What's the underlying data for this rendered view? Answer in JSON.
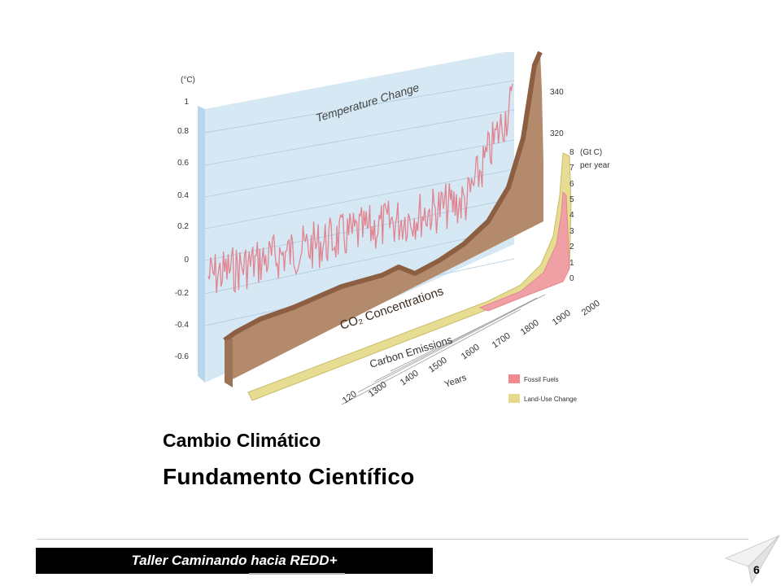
{
  "slide": {
    "subtitle": "Cambio Climático",
    "title": "Fundamento Científico",
    "footer": "Taller Caminando hacia REDD+",
    "page_number": "6"
  },
  "figure": {
    "left_axis_unit": "(°C)",
    "left_ticks": [
      "1",
      "0.8",
      "0.6",
      "0.4",
      "0.2",
      "0",
      "-0.2",
      "-0.4",
      "-0.6"
    ],
    "temperature_label": "Temperature Change",
    "co2_label": "CO₂ Concentrations",
    "co2_ticks": [
      "340",
      "320"
    ],
    "emissions_label": "Carbon Emissions",
    "emissions_unit_line1": "(Gt C)",
    "emissions_unit_line2": "per year",
    "emissions_ticks": [
      "8",
      "7",
      "6",
      "5",
      "4",
      "3",
      "2",
      "1",
      "0"
    ],
    "year_ticks": [
      "120",
      "1300",
      "1400",
      "1500",
      "1600",
      "1700",
      "1800",
      "1900",
      "2000"
    ],
    "years_label": "Years",
    "legend": [
      {
        "label": "Fossil Fuels",
        "color": "#f08a8f"
      },
      {
        "label": "Land-Use Change",
        "color": "#e5d98a"
      }
    ]
  },
  "colors": {
    "temperature_panel": "#d6e8f4",
    "temperature_line": "#e0848f",
    "co2_body": "#b38a6c",
    "co2_top": "#96674a",
    "land_use": "#e6dc92",
    "fossil": "#f0a0a4"
  }
}
